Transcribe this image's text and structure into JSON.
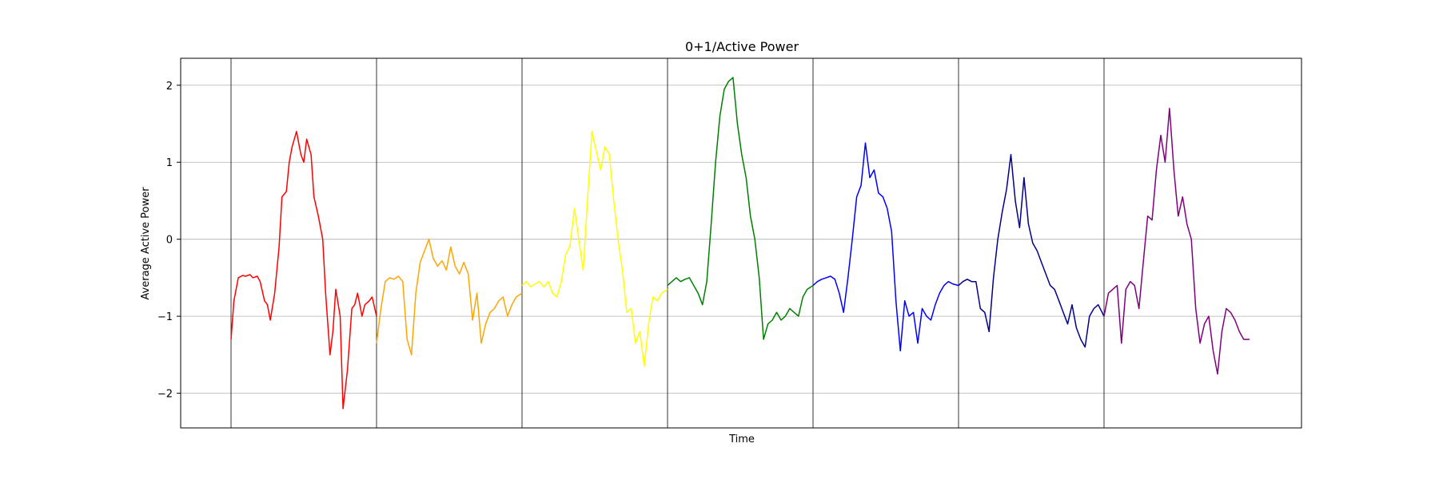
{
  "chart_data": {
    "type": "line",
    "title": "0+1/Active Power",
    "xlabel": "Time",
    "ylabel": "Average Active Power",
    "ylim": [
      -2.45,
      2.35
    ],
    "yticks": [
      -2,
      -1,
      0,
      1,
      2
    ],
    "xticks": [],
    "grid": "horizontal",
    "segment_boundaries": true,
    "series": [
      {
        "color": "#ff0000",
        "x": [
          0,
          0.02,
          0.05,
          0.08,
          0.1,
          0.13,
          0.15,
          0.18,
          0.2,
          0.23,
          0.25,
          0.27,
          0.3,
          0.33,
          0.35,
          0.38,
          0.4,
          0.42,
          0.45,
          0.48,
          0.5,
          0.52,
          0.55,
          0.57,
          0.6,
          0.63,
          0.65,
          0.68,
          0.7,
          0.72,
          0.75,
          0.77,
          0.8,
          0.83,
          0.85,
          0.87,
          0.9,
          0.92,
          0.95,
          0.97,
          1.0
        ],
        "values": [
          -1.3,
          -0.8,
          -0.5,
          -0.47,
          -0.48,
          -0.46,
          -0.5,
          -0.48,
          -0.55,
          -0.8,
          -0.85,
          -1.05,
          -0.7,
          -0.1,
          0.55,
          0.62,
          1.0,
          1.2,
          1.4,
          1.1,
          1.0,
          1.3,
          1.1,
          0.55,
          0.3,
          0.0,
          -0.7,
          -1.5,
          -1.2,
          -0.65,
          -1.0,
          -2.2,
          -1.7,
          -0.9,
          -0.85,
          -0.7,
          -1.0,
          -0.85,
          -0.8,
          -0.75,
          -1.0
        ]
      },
      {
        "color": "#ffa500",
        "x": [
          0,
          0.03,
          0.06,
          0.09,
          0.12,
          0.15,
          0.18,
          0.21,
          0.24,
          0.27,
          0.3,
          0.33,
          0.36,
          0.39,
          0.42,
          0.45,
          0.48,
          0.51,
          0.54,
          0.57,
          0.6,
          0.63,
          0.66,
          0.69,
          0.72,
          0.75,
          0.78,
          0.81,
          0.84,
          0.87,
          0.9,
          0.93,
          0.96,
          1.0
        ],
        "values": [
          -1.35,
          -0.9,
          -0.55,
          -0.5,
          -0.52,
          -0.48,
          -0.55,
          -1.3,
          -1.5,
          -0.7,
          -0.3,
          -0.15,
          0.0,
          -0.25,
          -0.35,
          -0.28,
          -0.4,
          -0.1,
          -0.35,
          -0.45,
          -0.3,
          -0.45,
          -1.05,
          -0.7,
          -1.35,
          -1.1,
          -0.95,
          -0.9,
          -0.8,
          -0.75,
          -1.0,
          -0.85,
          -0.75,
          -0.7
        ]
      },
      {
        "color": "#ffff00",
        "x": [
          0,
          0.03,
          0.06,
          0.09,
          0.12,
          0.15,
          0.18,
          0.21,
          0.24,
          0.27,
          0.3,
          0.33,
          0.36,
          0.39,
          0.42,
          0.45,
          0.48,
          0.51,
          0.54,
          0.57,
          0.6,
          0.63,
          0.66,
          0.69,
          0.72,
          0.75,
          0.78,
          0.81,
          0.84,
          0.87,
          0.9,
          0.93,
          0.96,
          1.0
        ],
        "values": [
          -0.6,
          -0.55,
          -0.62,
          -0.58,
          -0.55,
          -0.62,
          -0.55,
          -0.7,
          -0.75,
          -0.55,
          -0.2,
          -0.08,
          0.4,
          0.0,
          -0.4,
          0.5,
          1.4,
          1.15,
          0.9,
          1.2,
          1.1,
          0.5,
          0.0,
          -0.4,
          -0.95,
          -0.9,
          -1.35,
          -1.2,
          -1.65,
          -1.1,
          -0.75,
          -0.8,
          -0.7,
          -0.65
        ]
      },
      {
        "color": "#008000",
        "x": [
          0,
          0.03,
          0.06,
          0.09,
          0.12,
          0.15,
          0.18,
          0.21,
          0.24,
          0.27,
          0.3,
          0.33,
          0.36,
          0.39,
          0.42,
          0.45,
          0.48,
          0.51,
          0.54,
          0.57,
          0.6,
          0.63,
          0.66,
          0.69,
          0.72,
          0.75,
          0.78,
          0.81,
          0.84,
          0.87,
          0.9,
          0.93,
          0.96,
          1.0
        ],
        "values": [
          -0.6,
          -0.55,
          -0.5,
          -0.55,
          -0.52,
          -0.5,
          -0.6,
          -0.7,
          -0.85,
          -0.55,
          0.2,
          1.0,
          1.6,
          1.95,
          2.05,
          2.1,
          1.5,
          1.1,
          0.8,
          0.3,
          0.0,
          -0.5,
          -1.3,
          -1.1,
          -1.05,
          -0.95,
          -1.05,
          -1.0,
          -0.9,
          -0.95,
          -1.0,
          -0.75,
          -0.65,
          -0.6
        ]
      },
      {
        "color": "#0000ff",
        "x": [
          0,
          0.03,
          0.06,
          0.09,
          0.12,
          0.15,
          0.18,
          0.21,
          0.24,
          0.27,
          0.3,
          0.33,
          0.36,
          0.39,
          0.42,
          0.45,
          0.48,
          0.51,
          0.54,
          0.57,
          0.6,
          0.63,
          0.66,
          0.69,
          0.72,
          0.75,
          0.78,
          0.81,
          0.84,
          0.87,
          0.9,
          0.93,
          0.96,
          1.0
        ],
        "values": [
          -0.6,
          -0.55,
          -0.52,
          -0.5,
          -0.48,
          -0.52,
          -0.7,
          -0.95,
          -0.5,
          0.0,
          0.55,
          0.7,
          1.25,
          0.8,
          0.9,
          0.6,
          0.55,
          0.4,
          0.1,
          -0.8,
          -1.45,
          -0.8,
          -1.0,
          -0.95,
          -1.35,
          -0.9,
          -1.0,
          -1.05,
          -0.85,
          -0.7,
          -0.6,
          -0.55,
          -0.58,
          -0.6
        ]
      },
      {
        "color": "#00008b",
        "x": [
          0,
          0.03,
          0.06,
          0.09,
          0.12,
          0.15,
          0.18,
          0.21,
          0.24,
          0.27,
          0.3,
          0.33,
          0.36,
          0.39,
          0.42,
          0.45,
          0.48,
          0.51,
          0.54,
          0.57,
          0.6,
          0.63,
          0.66,
          0.69,
          0.72,
          0.75,
          0.78,
          0.81,
          0.84,
          0.87,
          0.9,
          0.93,
          0.96,
          1.0
        ],
        "values": [
          -0.6,
          -0.55,
          -0.52,
          -0.55,
          -0.55,
          -0.9,
          -0.95,
          -1.2,
          -0.5,
          0.0,
          0.35,
          0.65,
          1.1,
          0.5,
          0.15,
          0.8,
          0.2,
          -0.05,
          -0.15,
          -0.3,
          -0.45,
          -0.6,
          -0.65,
          -0.8,
          -0.95,
          -1.1,
          -0.85,
          -1.15,
          -1.3,
          -1.4,
          -1.0,
          -0.9,
          -0.85,
          -1.0
        ]
      },
      {
        "color": "#800080",
        "x": [
          0,
          0.03,
          0.06,
          0.09,
          0.12,
          0.15,
          0.18,
          0.21,
          0.24,
          0.27,
          0.3,
          0.33,
          0.36,
          0.39,
          0.42,
          0.45,
          0.48,
          0.51,
          0.54,
          0.57,
          0.6,
          0.63,
          0.66,
          0.69,
          0.72,
          0.75,
          0.78,
          0.81,
          0.84,
          0.87,
          0.9,
          0.93,
          0.96,
          1.0
        ],
        "values": [
          -1.0,
          -0.7,
          -0.65,
          -0.6,
          -1.35,
          -0.65,
          -0.55,
          -0.6,
          -0.9,
          -0.3,
          0.3,
          0.25,
          0.9,
          1.35,
          1.0,
          1.7,
          0.9,
          0.3,
          0.55,
          0.2,
          0.0,
          -0.9,
          -1.35,
          -1.1,
          -1.0,
          -1.45,
          -1.75,
          -1.2,
          -0.9,
          -0.95,
          -1.05,
          -1.2,
          -1.3,
          -1.3
        ]
      }
    ]
  }
}
